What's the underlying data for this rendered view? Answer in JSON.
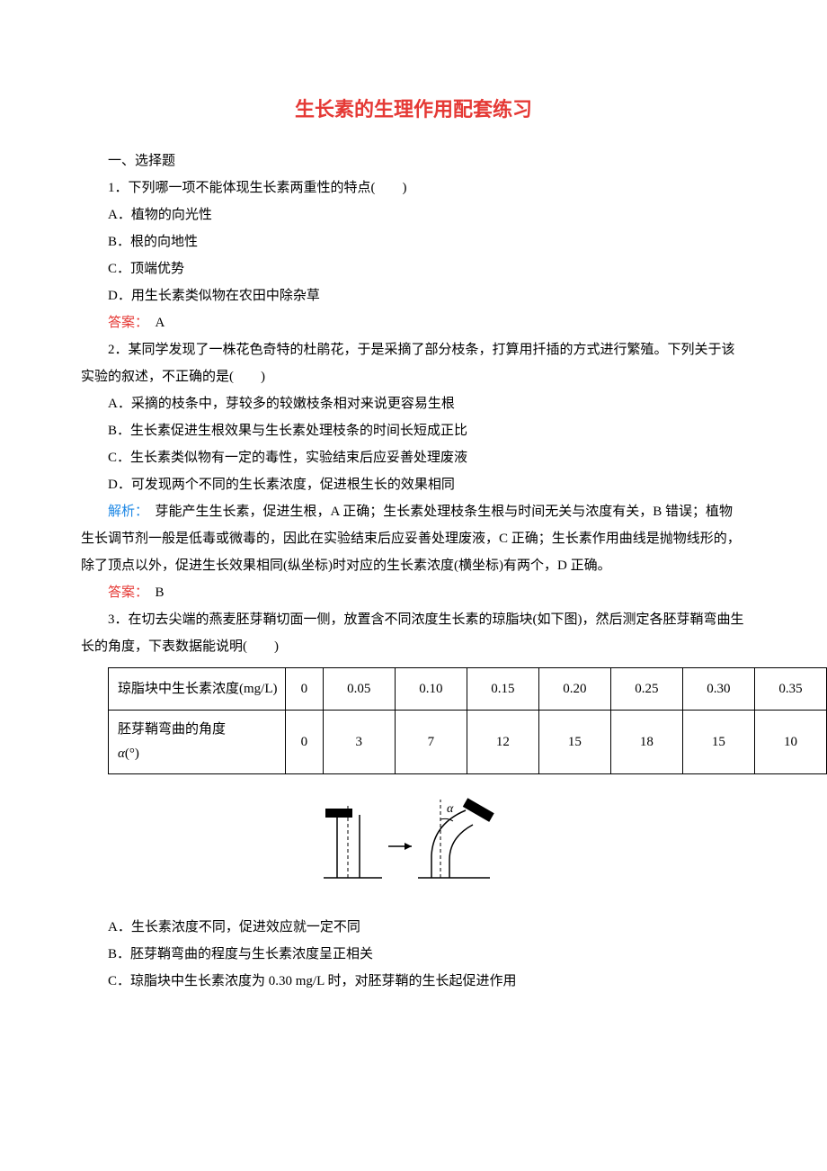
{
  "title": "生长素的生理作用配套练习",
  "section1": "一、选择题",
  "q1": {
    "stem": "1．下列哪一项不能体现生长素两重性的特点(　　)",
    "A": "A．植物的向光性",
    "B": "B．根的向地性",
    "C": "C．顶端优势",
    "D": "D．用生长素类似物在农田中除杂草",
    "answer_label": "答案：",
    "answer_value": "　A"
  },
  "q2": {
    "stem": "2．某同学发现了一株花色奇特的杜鹃花，于是采摘了部分枝条，打算用扦插的方式进行繁殖。下列关于该实验的叙述，不正确的是(　　)",
    "A": "A．采摘的枝条中，芽较多的较嫩枝条相对来说更容易生根",
    "B": "B．生长素促进生根效果与生长素处理枝条的时间长短成正比",
    "C": "C．生长素类似物有一定的毒性，实验结束后应妥善处理废液",
    "D": "D．可发现两个不同的生长素浓度，促进根生长的效果相同",
    "analysis_label": "解析：",
    "analysis_text": "　芽能产生生长素，促进生根，A 正确；生长素处理枝条生根与时间无关与浓度有关，B 错误；植物生长调节剂一般是低毒或微毒的，因此在实验结束后应妥善处理废液，C 正确；生长素作用曲线是抛物线形的，除了顶点以外，促进生长效果相同(纵坐标)时对应的生长素浓度(横坐标)有两个，D 正确。",
    "answer_label": "答案：",
    "answer_value": "　B"
  },
  "q3": {
    "stem": "3．在切去尖端的燕麦胚芽鞘切面一侧，放置含不同浓度生长素的琼脂块(如下图)，然后测定各胚芽鞘弯曲生长的角度，下表数据能说明(　　)",
    "table": {
      "row1_label": "琼脂块中生长素浓度(mg/L)",
      "row1": [
        "0",
        "0.05",
        "0.10",
        "0.15",
        "0.20",
        "0.25",
        "0.30",
        "0.35"
      ],
      "row2_label_html": "胚芽鞘弯曲的角度<br><span class=\"italic\">α</span>(°)",
      "row2": [
        "0",
        "3",
        "7",
        "12",
        "15",
        "18",
        "15",
        "10"
      ]
    },
    "A": "A．生长素浓度不同，促进效应就一定不同",
    "B": "B．胚芽鞘弯曲的程度与生长素浓度呈正相关",
    "C": "C．琼脂块中生长素浓度为 0.30 mg/L 时，对胚芽鞘的生长起促进作用"
  },
  "figure": {
    "block_color": "#000000",
    "line_color": "#000000",
    "dash": "4,3",
    "alpha_label": "α"
  }
}
